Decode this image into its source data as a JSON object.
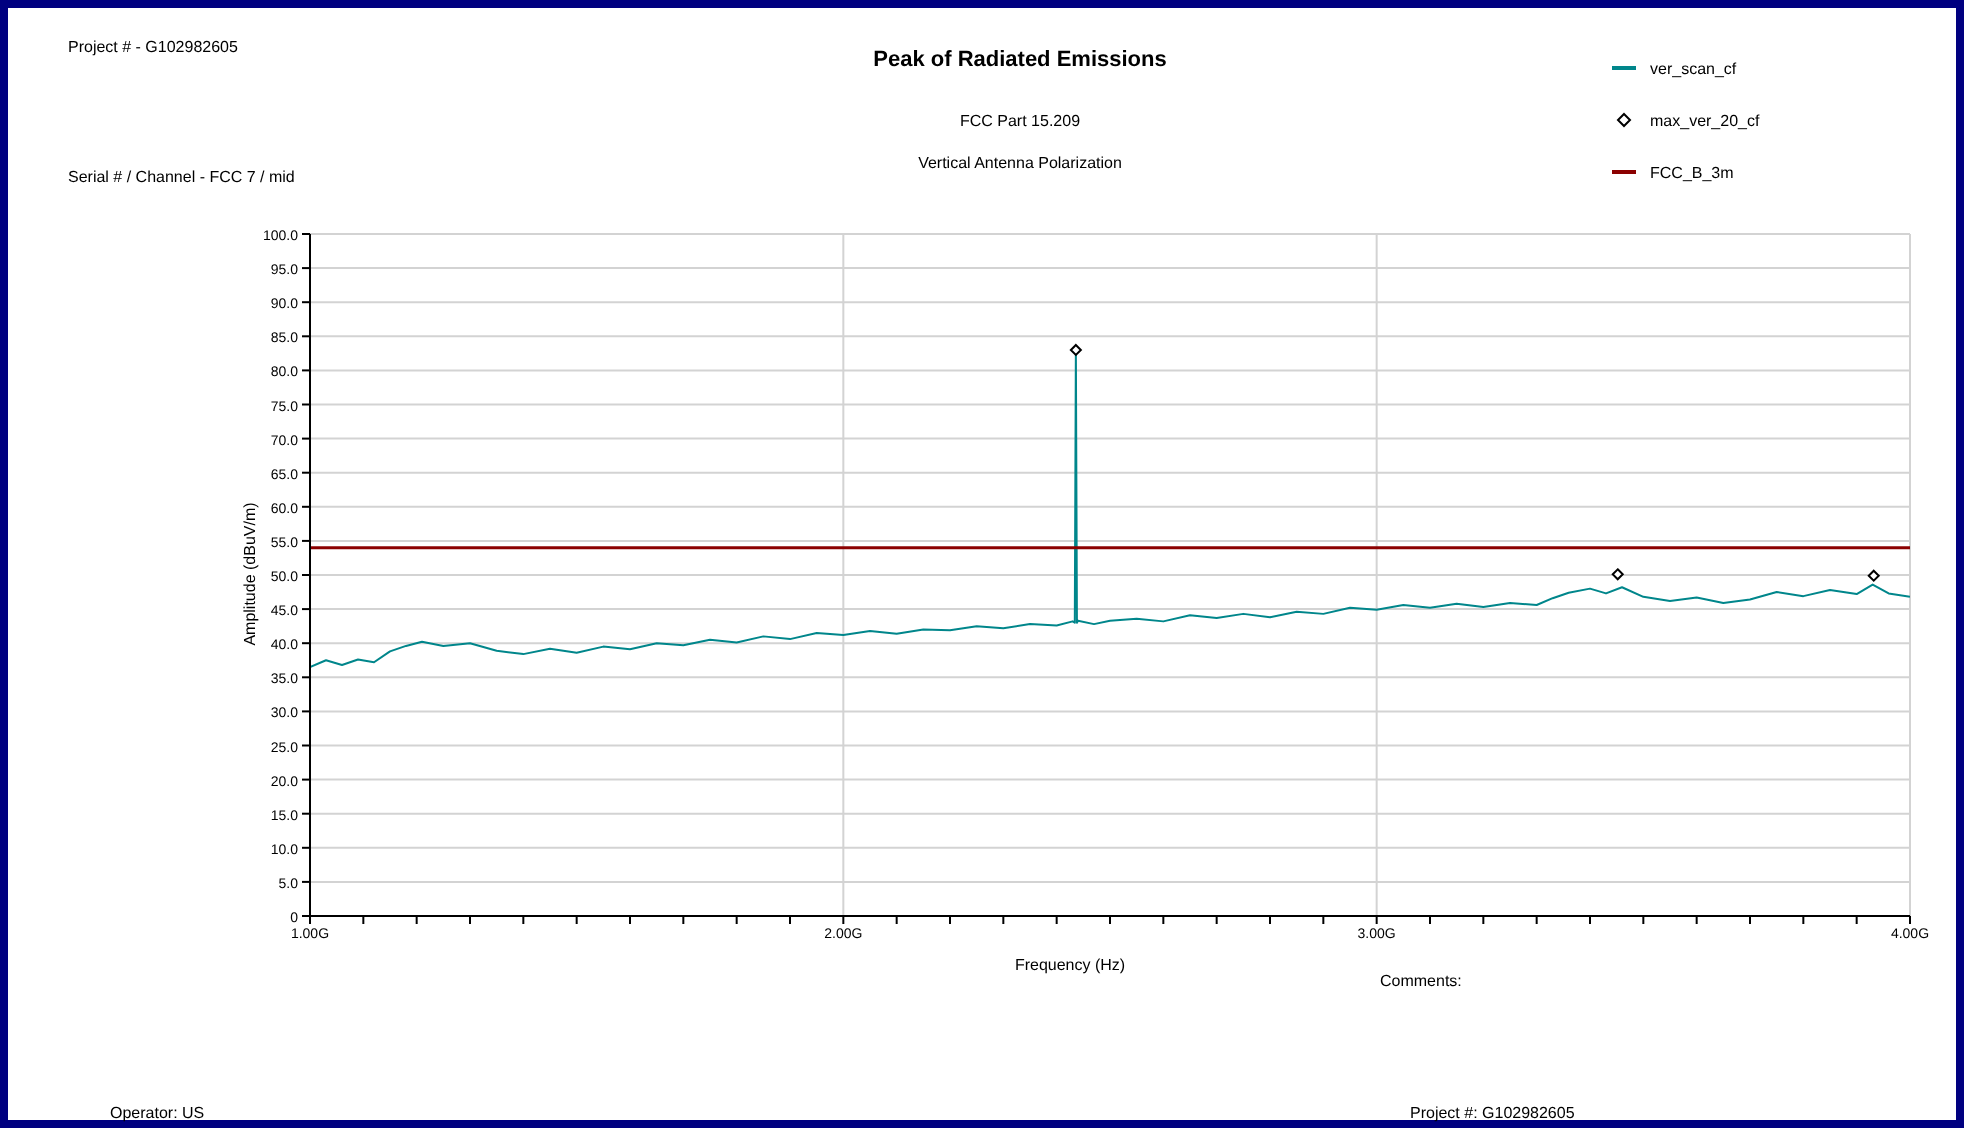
{
  "chart_data": {
    "type": "line",
    "title": "Peak of Radiated Emissions",
    "subtitle": "FCC Part 15.209",
    "xlabel": "Frequency (Hz)",
    "ylabel": "Amplitude (dBuV/m)",
    "annotations": [
      "Project # - G102982605",
      "Serial # / Channel - FCC 7 / mid",
      "Vertical Antenna Polarization",
      "Comments:",
      "Operator: US",
      "Project #: G102982605"
    ],
    "xlim": [
      1,
      4
    ],
    "ylim": [
      0,
      100
    ],
    "xticks": [
      {
        "value": 1,
        "label": "1.00G"
      },
      {
        "value": 1.1,
        "label": null
      },
      {
        "value": 1.2,
        "label": null
      },
      {
        "value": 1.3,
        "label": null
      },
      {
        "value": 1.4,
        "label": null
      },
      {
        "value": 1.5,
        "label": null
      },
      {
        "value": 1.6,
        "label": null
      },
      {
        "value": 1.7,
        "label": null
      },
      {
        "value": 1.8,
        "label": null
      },
      {
        "value": 1.9,
        "label": null
      },
      {
        "value": 2,
        "label": "2.00G"
      },
      {
        "value": 2.1,
        "label": null
      },
      {
        "value": 2.2,
        "label": null
      },
      {
        "value": 2.3,
        "label": null
      },
      {
        "value": 2.4,
        "label": null
      },
      {
        "value": 2.5,
        "label": null
      },
      {
        "value": 2.6,
        "label": null
      },
      {
        "value": 2.7,
        "label": null
      },
      {
        "value": 2.8,
        "label": null
      },
      {
        "value": 2.9,
        "label": null
      },
      {
        "value": 3,
        "label": "3.00G"
      },
      {
        "value": 3.1,
        "label": null
      },
      {
        "value": 3.2,
        "label": null
      },
      {
        "value": 3.3,
        "label": null
      },
      {
        "value": 3.4,
        "label": null
      },
      {
        "value": 3.5,
        "label": null
      },
      {
        "value": 3.6,
        "label": null
      },
      {
        "value": 3.7,
        "label": null
      },
      {
        "value": 3.8,
        "label": null
      },
      {
        "value": 3.9,
        "label": null
      },
      {
        "value": 4,
        "label": "4.00G"
      }
    ],
    "yticks": [
      0,
      {
        "value": 5,
        "label": "5.0"
      },
      {
        "value": 10,
        "label": "10.0"
      },
      {
        "value": 15,
        "label": "15.0"
      },
      {
        "value": 20,
        "label": "20.0"
      },
      {
        "value": 25,
        "label": "25.0"
      },
      {
        "value": 30,
        "label": "30.0"
      },
      {
        "value": 35,
        "label": "35.0"
      },
      {
        "value": 40,
        "label": "40.0"
      },
      {
        "value": 45,
        "label": "45.0"
      },
      {
        "value": 50,
        "label": "50.0"
      },
      {
        "value": 55,
        "label": "55.0"
      },
      {
        "value": 60,
        "label": "60.0"
      },
      {
        "value": 65,
        "label": "65.0"
      },
      {
        "value": 70,
        "label": "70.0"
      },
      {
        "value": 75,
        "label": "75.0"
      },
      {
        "value": 80,
        "label": "80.0"
      },
      {
        "value": 85,
        "label": "85.0"
      },
      {
        "value": 90,
        "label": "90.0"
      },
      {
        "value": 95,
        "label": "95.0"
      },
      {
        "value": 100,
        "label": "100.0"
      }
    ],
    "grid": true,
    "legend": "top right",
    "series": [
      {
        "name": "ver_scan_cf",
        "color": "#00868b",
        "marker": "none",
        "x": [
          1,
          1.03,
          1.06,
          1.09,
          1.12,
          1.15,
          1.18,
          1.21,
          1.25,
          1.3,
          1.35,
          1.4,
          1.45,
          1.5,
          1.55,
          1.6,
          1.65,
          1.7,
          1.75,
          1.8,
          1.85,
          1.9,
          1.95,
          2,
          2.05,
          2.1,
          2.15,
          2.2,
          2.25,
          2.3,
          2.35,
          2.4,
          2.43,
          2.434,
          2.436,
          2.438,
          2.44,
          2.47,
          2.5,
          2.55,
          2.6,
          2.65,
          2.7,
          2.75,
          2.8,
          2.85,
          2.9,
          2.95,
          3,
          3.05,
          3.1,
          3.15,
          3.2,
          3.25,
          3.3,
          3.33,
          3.36,
          3.4,
          3.43,
          3.46,
          3.5,
          3.55,
          3.6,
          3.65,
          3.7,
          3.75,
          3.8,
          3.85,
          3.9,
          3.93,
          3.96,
          4
        ],
        "values": [
          36.5,
          37.5,
          36.8,
          37.6,
          37.2,
          38.8,
          39.6,
          40.2,
          39.6,
          40,
          38.9,
          38.4,
          39.2,
          38.6,
          39.5,
          39.1,
          40,
          39.7,
          40.5,
          40.1,
          41,
          40.6,
          41.5,
          41.2,
          41.8,
          41.4,
          42,
          41.9,
          42.5,
          42.2,
          42.8,
          42.6,
          43.2,
          43,
          83,
          43,
          43.3,
          42.8,
          43.3,
          43.6,
          43.2,
          44.1,
          43.7,
          44.3,
          43.8,
          44.6,
          44.3,
          45.2,
          44.9,
          45.6,
          45.2,
          45.8,
          45.3,
          45.9,
          45.6,
          46.6,
          47.4,
          48,
          47.3,
          48.2,
          46.8,
          46.2,
          46.7,
          45.9,
          46.4,
          47.5,
          46.9,
          47.8,
          47.2,
          48.6,
          47.3,
          46.8
        ]
      },
      {
        "name": "max_ver_20_cf",
        "type": "scatter",
        "color": "#000000",
        "marker": "diamond",
        "x": [
          2.436,
          3.452,
          3.932
        ],
        "values": [
          83,
          50.1,
          49.9
        ]
      },
      {
        "name": "FCC_B_3m",
        "color": "#8b0000",
        "marker": "none",
        "x": [
          1,
          4
        ],
        "values": [
          54,
          54
        ]
      }
    ]
  }
}
